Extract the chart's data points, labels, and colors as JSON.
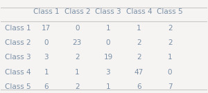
{
  "col_labels": [
    "",
    "Class 1",
    "Class 2",
    "Class 3",
    "Class 4",
    "Class 5"
  ],
  "row_labels": [
    "Class 1",
    "Class 2",
    "Class 3",
    "Class 4",
    "Class 5"
  ],
  "matrix": [
    [
      17,
      0,
      1,
      1,
      2
    ],
    [
      0,
      23,
      0,
      2,
      2
    ],
    [
      3,
      2,
      19,
      2,
      1
    ],
    [
      1,
      1,
      3,
      47,
      0
    ],
    [
      6,
      2,
      1,
      6,
      7
    ]
  ],
  "bg_color": "#f5f4f2",
  "text_color": "#7a8fa6",
  "header_color": "#7a8fa6",
  "line_color": "#c8c8c8",
  "font_size": 7.5,
  "header_font_size": 7.5
}
